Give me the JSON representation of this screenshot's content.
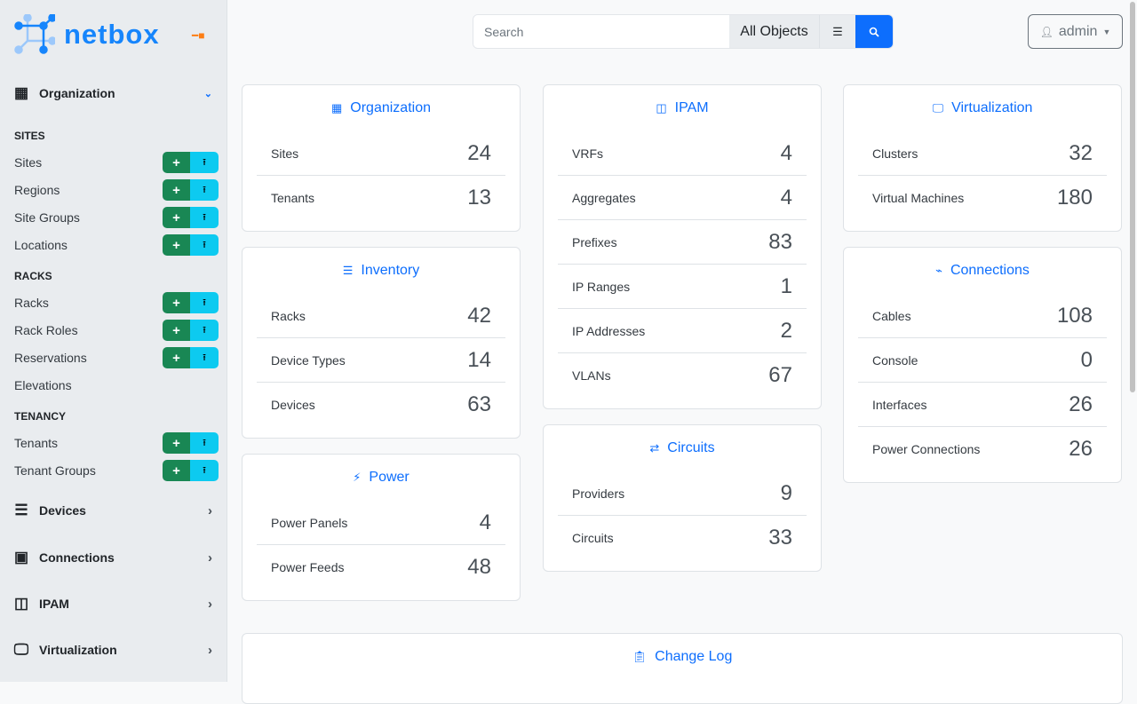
{
  "brand": {
    "name": "netbox",
    "pin_icon": "pin-icon",
    "accent": "#1685fc"
  },
  "sidebar": {
    "groups": [
      {
        "label": "Organization",
        "icon": "building-icon",
        "expanded": true
      },
      {
        "label": "Devices",
        "icon": "server-icon",
        "expanded": false
      },
      {
        "label": "Connections",
        "icon": "ethernet-icon",
        "expanded": false
      },
      {
        "label": "IPAM",
        "icon": "ipam-icon",
        "expanded": false
      },
      {
        "label": "Virtualization",
        "icon": "monitor-icon",
        "expanded": false
      }
    ],
    "sections": [
      {
        "title": "SITES",
        "items": [
          {
            "label": "Sites",
            "buttons": true
          },
          {
            "label": "Regions",
            "buttons": true
          },
          {
            "label": "Site Groups",
            "buttons": true
          },
          {
            "label": "Locations",
            "buttons": true
          }
        ]
      },
      {
        "title": "RACKS",
        "items": [
          {
            "label": "Racks",
            "buttons": true
          },
          {
            "label": "Rack Roles",
            "buttons": true
          },
          {
            "label": "Reservations",
            "buttons": true
          },
          {
            "label": "Elevations",
            "buttons": false
          }
        ]
      },
      {
        "title": "TENANCY",
        "items": [
          {
            "label": "Tenants",
            "buttons": true
          },
          {
            "label": "Tenant Groups",
            "buttons": true
          }
        ]
      }
    ],
    "add_symbol": "+",
    "import_symbol": "⭱"
  },
  "search": {
    "placeholder": "Search",
    "value": "",
    "scope": "All Objects"
  },
  "user": {
    "name": "admin"
  },
  "columns": [
    [
      {
        "title": "Organization",
        "icon": "building-icon",
        "rows": [
          {
            "label": "Sites",
            "value": "24"
          },
          {
            "label": "Tenants",
            "value": "13"
          }
        ]
      },
      {
        "title": "Inventory",
        "icon": "server-icon",
        "rows": [
          {
            "label": "Racks",
            "value": "42"
          },
          {
            "label": "Device Types",
            "value": "14"
          },
          {
            "label": "Devices",
            "value": "63"
          }
        ]
      },
      {
        "title": "Power",
        "icon": "bolt-icon",
        "rows": [
          {
            "label": "Power Panels",
            "value": "4"
          },
          {
            "label": "Power Feeds",
            "value": "48"
          }
        ]
      }
    ],
    [
      {
        "title": "IPAM",
        "icon": "ipam-icon",
        "rows": [
          {
            "label": "VRFs",
            "value": "4"
          },
          {
            "label": "Aggregates",
            "value": "4"
          },
          {
            "label": "Prefixes",
            "value": "83"
          },
          {
            "label": "IP Ranges",
            "value": "1"
          },
          {
            "label": "IP Addresses",
            "value": "2"
          },
          {
            "label": "VLANs",
            "value": "67"
          }
        ]
      },
      {
        "title": "Circuits",
        "icon": "circuit-icon",
        "rows": [
          {
            "label": "Providers",
            "value": "9"
          },
          {
            "label": "Circuits",
            "value": "33"
          }
        ]
      }
    ],
    [
      {
        "title": "Virtualization",
        "icon": "monitor-icon",
        "rows": [
          {
            "label": "Clusters",
            "value": "32"
          },
          {
            "label": "Virtual Machines",
            "value": "180"
          }
        ]
      },
      {
        "title": "Connections",
        "icon": "cable-icon",
        "rows": [
          {
            "label": "Cables",
            "value": "108"
          },
          {
            "label": "Console",
            "value": "0"
          },
          {
            "label": "Interfaces",
            "value": "26"
          },
          {
            "label": "Power Connections",
            "value": "26"
          }
        ]
      }
    ]
  ],
  "changelog": {
    "title": "Change Log",
    "icon": "clipboard-clock-icon"
  }
}
